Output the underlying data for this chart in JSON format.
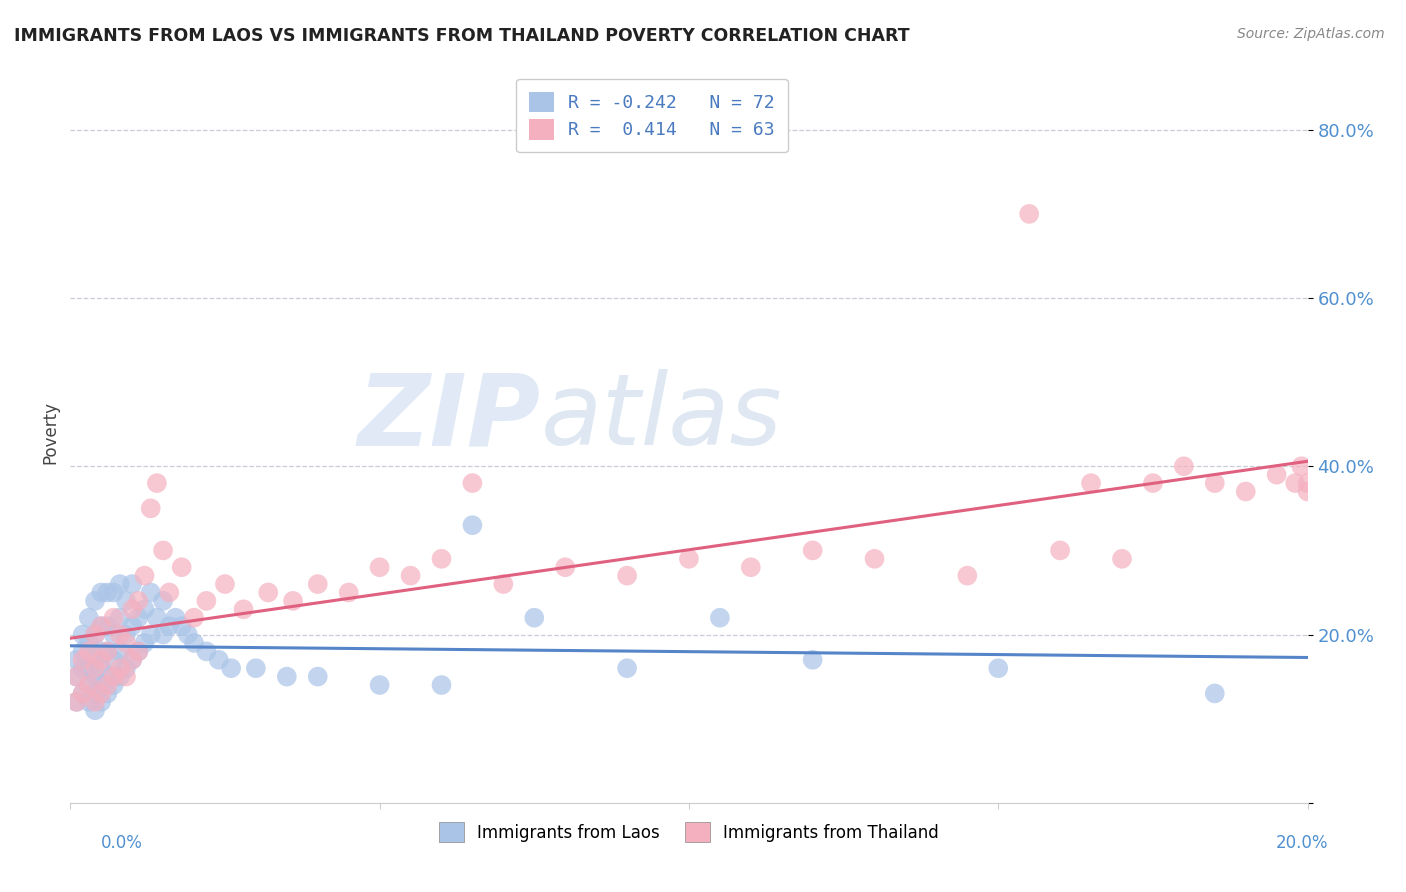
{
  "title": "IMMIGRANTS FROM LAOS VS IMMIGRANTS FROM THAILAND POVERTY CORRELATION CHART",
  "source": "Source: ZipAtlas.com",
  "ylabel": "Poverty",
  "y_ticks": [
    0.0,
    0.2,
    0.4,
    0.6,
    0.8
  ],
  "y_tick_labels": [
    "",
    "20.0%",
    "40.0%",
    "60.0%",
    "80.0%"
  ],
  "xlim": [
    0.0,
    0.2
  ],
  "ylim": [
    0.0,
    0.88
  ],
  "watermark_zip": "ZIP",
  "watermark_atlas": "atlas",
  "laos_label": "Immigrants from Laos",
  "thailand_label": "Immigrants from Thailand",
  "laos_R": -0.242,
  "laos_N": 72,
  "thailand_R": 0.414,
  "thailand_N": 63,
  "laos_scatter_color": "#aac4e8",
  "laos_line_color": "#5585c8",
  "thailand_scatter_color": "#f5b0c0",
  "thailand_line_color": "#e06080",
  "laos_x": [
    0.001,
    0.001,
    0.001,
    0.002,
    0.002,
    0.002,
    0.002,
    0.003,
    0.003,
    0.003,
    0.003,
    0.003,
    0.004,
    0.004,
    0.004,
    0.004,
    0.004,
    0.004,
    0.005,
    0.005,
    0.005,
    0.005,
    0.005,
    0.005,
    0.006,
    0.006,
    0.006,
    0.006,
    0.006,
    0.007,
    0.007,
    0.007,
    0.007,
    0.008,
    0.008,
    0.008,
    0.008,
    0.009,
    0.009,
    0.009,
    0.01,
    0.01,
    0.01,
    0.011,
    0.011,
    0.012,
    0.012,
    0.013,
    0.013,
    0.014,
    0.015,
    0.015,
    0.016,
    0.017,
    0.018,
    0.019,
    0.02,
    0.022,
    0.024,
    0.026,
    0.03,
    0.035,
    0.04,
    0.05,
    0.06,
    0.065,
    0.075,
    0.09,
    0.105,
    0.12,
    0.15,
    0.185
  ],
  "laos_y": [
    0.12,
    0.15,
    0.17,
    0.13,
    0.16,
    0.18,
    0.2,
    0.12,
    0.14,
    0.16,
    0.19,
    0.22,
    0.11,
    0.13,
    0.15,
    0.17,
    0.2,
    0.24,
    0.12,
    0.14,
    0.16,
    0.18,
    0.21,
    0.25,
    0.13,
    0.15,
    0.18,
    0.21,
    0.25,
    0.14,
    0.17,
    0.2,
    0.25,
    0.15,
    0.18,
    0.22,
    0.26,
    0.16,
    0.2,
    0.24,
    0.17,
    0.21,
    0.26,
    0.18,
    0.22,
    0.19,
    0.23,
    0.2,
    0.25,
    0.22,
    0.2,
    0.24,
    0.21,
    0.22,
    0.21,
    0.2,
    0.19,
    0.18,
    0.17,
    0.16,
    0.16,
    0.15,
    0.15,
    0.14,
    0.14,
    0.33,
    0.22,
    0.16,
    0.22,
    0.17,
    0.16,
    0.13
  ],
  "thailand_x": [
    0.001,
    0.001,
    0.002,
    0.002,
    0.003,
    0.003,
    0.004,
    0.004,
    0.004,
    0.005,
    0.005,
    0.005,
    0.006,
    0.006,
    0.007,
    0.007,
    0.008,
    0.008,
    0.009,
    0.009,
    0.01,
    0.01,
    0.011,
    0.011,
    0.012,
    0.013,
    0.014,
    0.015,
    0.016,
    0.018,
    0.02,
    0.022,
    0.025,
    0.028,
    0.032,
    0.036,
    0.04,
    0.045,
    0.05,
    0.055,
    0.06,
    0.065,
    0.07,
    0.08,
    0.09,
    0.1,
    0.11,
    0.12,
    0.13,
    0.145,
    0.155,
    0.16,
    0.165,
    0.17,
    0.175,
    0.18,
    0.185,
    0.19,
    0.195,
    0.198,
    0.199,
    0.2,
    0.2
  ],
  "thailand_y": [
    0.12,
    0.15,
    0.13,
    0.17,
    0.14,
    0.18,
    0.12,
    0.16,
    0.2,
    0.13,
    0.17,
    0.21,
    0.14,
    0.18,
    0.15,
    0.22,
    0.16,
    0.2,
    0.15,
    0.19,
    0.17,
    0.23,
    0.18,
    0.24,
    0.27,
    0.35,
    0.38,
    0.3,
    0.25,
    0.28,
    0.22,
    0.24,
    0.26,
    0.23,
    0.25,
    0.24,
    0.26,
    0.25,
    0.28,
    0.27,
    0.29,
    0.38,
    0.26,
    0.28,
    0.27,
    0.29,
    0.28,
    0.3,
    0.29,
    0.27,
    0.7,
    0.3,
    0.38,
    0.29,
    0.38,
    0.4,
    0.38,
    0.37,
    0.39,
    0.38,
    0.4,
    0.38,
    0.37
  ]
}
